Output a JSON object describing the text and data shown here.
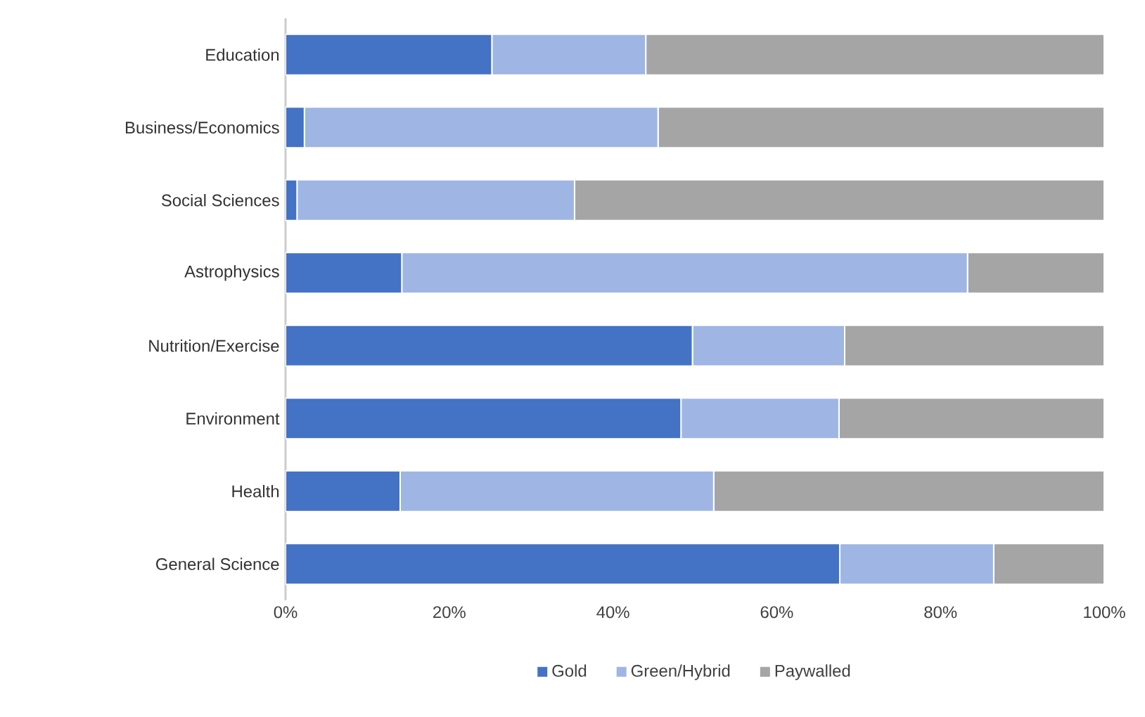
{
  "chart_data": {
    "type": "bar",
    "orientation": "horizontal",
    "stacked": true,
    "categories": [
      "Education",
      "Business/Economics",
      "Social Sciences",
      "Astrophysics",
      "Nutrition/Exercise",
      "Environment",
      "Health",
      "General Science"
    ],
    "series": [
      {
        "name": "Gold",
        "color": "#4472c4",
        "values": [
          25.2,
          2.3,
          1.4,
          14.2,
          49.7,
          48.3,
          14.0,
          67.7
        ]
      },
      {
        "name": "Green/Hybrid",
        "color": "#9fb5e3",
        "values": [
          18.8,
          43.2,
          33.9,
          69.1,
          18.6,
          19.3,
          38.3,
          18.8
        ]
      },
      {
        "name": "Paywalled",
        "color": "#a5a5a5",
        "values": [
          56.0,
          54.5,
          64.7,
          16.7,
          31.7,
          32.4,
          47.7,
          13.5
        ]
      }
    ],
    "xlim": [
      0,
      100
    ],
    "xticks": [
      {
        "value": 0,
        "label": "0%"
      },
      {
        "value": 20,
        "label": "20%"
      },
      {
        "value": 40,
        "label": "40%"
      },
      {
        "value": 60,
        "label": "60%"
      },
      {
        "value": 80,
        "label": "80%"
      },
      {
        "value": 100,
        "label": "100%"
      }
    ],
    "grid": false,
    "legend": "bottom"
  }
}
